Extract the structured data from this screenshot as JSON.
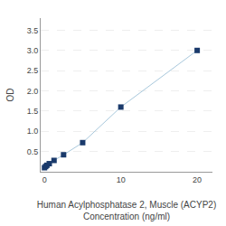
{
  "chart_data": {
    "type": "line",
    "xlabel": "Human Acylphosphatase 2, Muscle (ACYP2)\nConcentration (ng/ml)",
    "ylabel": "OD",
    "x": [
      0,
      0.156,
      0.313,
      0.625,
      1.25,
      2.5,
      5,
      10,
      20
    ],
    "values": [
      0.1,
      0.13,
      0.16,
      0.2,
      0.28,
      0.42,
      0.72,
      1.6,
      3.0
    ],
    "color": "#a8c8dc",
    "colors": [
      "#1a3a6b",
      "#1a3a6b",
      "#1a3a6b",
      "#1a3a6b",
      "#1a3a6b",
      "#1a3a6b",
      "#1a3a6b",
      "#1a3a6b",
      "#1a3a6b"
    ],
    "marker": "square",
    "xlim": [
      -0.5,
      22
    ],
    "xticks": [
      0,
      10,
      20
    ],
    "ylim": [
      0,
      3.8
    ],
    "yticks": [
      0.5,
      {
        "value": 1,
        "label": "1.0"
      },
      1.5,
      {
        "value": 2,
        "label": "2.0"
      },
      2.5,
      {
        "value": 3,
        "label": "3.0"
      },
      3.5
    ],
    "grid": true
  }
}
